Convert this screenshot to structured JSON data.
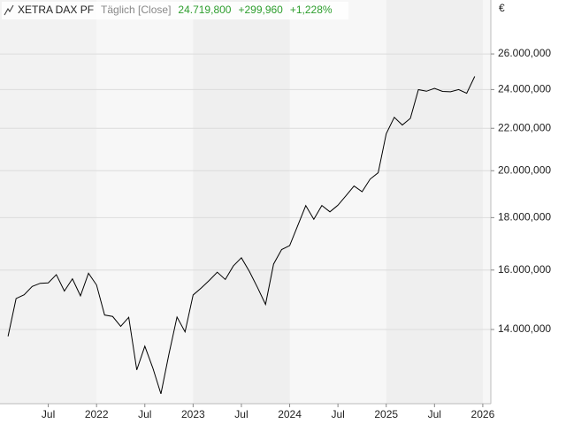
{
  "chart_data": {
    "type": "line",
    "title": "XETRA DAX PF",
    "subtitle": "Täglich [Close]",
    "annotations": [
      "24.719,800",
      "+299,960",
      "+1,228%"
    ],
    "annotation_color": "#2e9e2e",
    "currency": "€",
    "color": "#000000",
    "log_scale": true,
    "grid": true,
    "x": [
      "2021-02",
      "2021-03",
      "2021-04",
      "2021-05",
      "2021-06",
      "2021-07",
      "2021-08",
      "2021-09",
      "2021-10",
      "2021-11",
      "2021-12",
      "2022-01",
      "2022-02",
      "2022-03",
      "2022-04",
      "2022-05",
      "2022-06",
      "2022-07",
      "2022-08",
      "2022-09",
      "2022-10",
      "2022-11",
      "2022-12",
      "2023-01",
      "2023-02",
      "2023-03",
      "2023-04",
      "2023-05",
      "2023-06",
      "2023-07",
      "2023-08",
      "2023-09",
      "2023-10",
      "2023-11",
      "2023-12",
      "2024-01",
      "2024-02",
      "2024-03",
      "2024-04",
      "2024-05",
      "2024-06",
      "2024-07",
      "2024-08",
      "2024-09",
      "2024-10",
      "2024-11",
      "2024-12",
      "2025-01",
      "2025-02",
      "2025-03",
      "2025-04",
      "2025-05",
      "2025-06",
      "2025-07",
      "2025-08",
      "2025-09",
      "2025-10",
      "2025-11",
      "2025-12"
    ],
    "values": [
      13786,
      15008,
      15136,
      15421,
      15531,
      15544,
      15835,
      15261,
      15688,
      15100,
      15885,
      15471,
      14461,
      14415,
      14098,
      14388,
      12784,
      13484,
      12835,
      12114,
      13253,
      14397,
      13924,
      15128,
      15365,
      15629,
      15922,
      15664,
      16148,
      16447,
      15947,
      15386,
      14810,
      16215,
      16752,
      16904,
      17678,
      18492,
      17932,
      18498,
      18235,
      18509,
      18907,
      19325,
      19078,
      19626,
      19909,
      21732,
      22551,
      22163,
      22497,
      23997,
      23910,
      24065,
      23902,
      23881,
      24000,
      23800,
      24720
    ],
    "xlim": [
      "2021-01",
      "2026-02"
    ],
    "xticks": [
      {
        "value": "2021-07",
        "label": "Jul"
      },
      {
        "value": "2022-01",
        "label": "2022"
      },
      {
        "value": "2022-07",
        "label": "Jul"
      },
      {
        "value": "2023-01",
        "label": "2023"
      },
      {
        "value": "2023-07",
        "label": "Jul"
      },
      {
        "value": "2024-01",
        "label": "2024"
      },
      {
        "value": "2024-07",
        "label": "Jul"
      },
      {
        "value": "2025-01",
        "label": "2025"
      },
      {
        "value": "2025-07",
        "label": "Jul"
      },
      {
        "value": "2026-01",
        "label": "2026"
      }
    ],
    "ylim": [
      11850,
      29350
    ],
    "yticks": [
      {
        "value": 14000,
        "label": "14.000,000"
      },
      {
        "value": 16000,
        "label": "16.000,000"
      },
      {
        "value": 18000,
        "label": "18.000,000"
      },
      {
        "value": 20000,
        "label": "20.000,000"
      },
      {
        "value": 22000,
        "label": "22.000,000"
      },
      {
        "value": 24000,
        "label": "24.000,000"
      },
      {
        "value": 26000,
        "label": "26.000,000"
      }
    ]
  }
}
